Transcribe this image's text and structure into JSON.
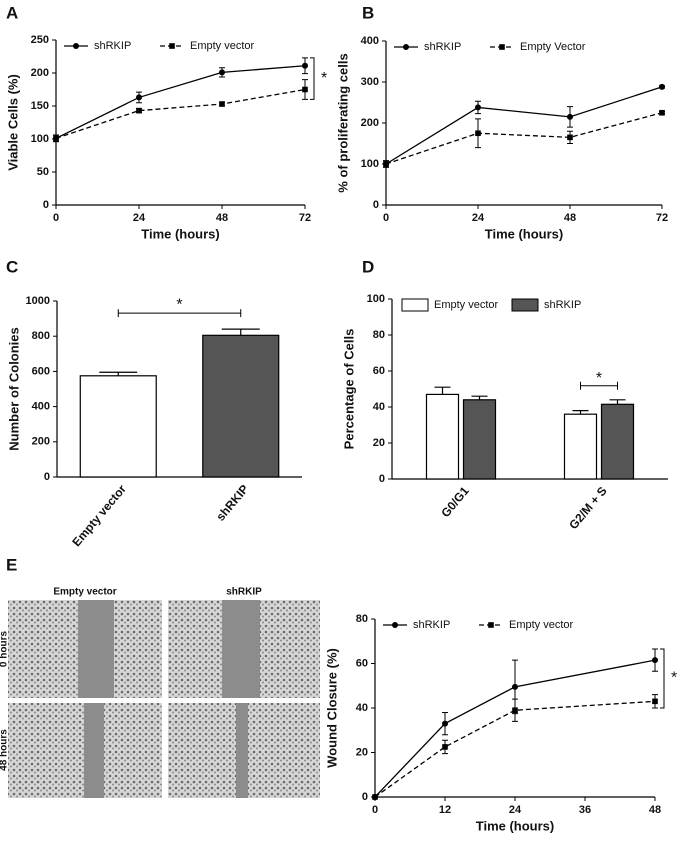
{
  "chart_data": [
    {
      "type": "line",
      "panel_label": "A",
      "x_label": "Time (hours)",
      "y_label": "Viable Cells (%)",
      "x": [
        0,
        24,
        48,
        72
      ],
      "xlim": [
        0,
        72
      ],
      "xticks": [
        0,
        24,
        48,
        72
      ],
      "ylim": [
        0,
        250
      ],
      "yticks": [
        0,
        50,
        100,
        150,
        200,
        250
      ],
      "series": [
        {
          "name": "shRKIP",
          "color": "#000000",
          "line_style": "solid",
          "marker": "circle",
          "values": [
            101,
            163,
            201,
            211
          ],
          "errors": [
            5,
            8,
            7,
            12
          ]
        },
        {
          "name": "Empty vector",
          "color": "#000000",
          "line_style": "dashed",
          "marker": "square",
          "values": [
            101,
            143,
            153,
            175
          ],
          "errors": [
            5,
            3,
            3,
            15
          ]
        }
      ],
      "annotations": [
        {
          "text": "*"
        }
      ]
    },
    {
      "type": "line",
      "panel_label": "B",
      "x_label": "Time (hours)",
      "y_label": "% of proliferating cells",
      "x": [
        0,
        24,
        48,
        72
      ],
      "xlim": [
        0,
        72
      ],
      "xticks": [
        0,
        24,
        48,
        72
      ],
      "ylim": [
        0,
        400
      ],
      "yticks": [
        0,
        100,
        200,
        300,
        400
      ],
      "series": [
        {
          "name": "shRKIP",
          "color": "#000000",
          "line_style": "solid",
          "marker": "circle",
          "values": [
            100,
            238,
            215,
            288
          ],
          "errors": [
            8,
            15,
            25,
            3
          ]
        },
        {
          "name": "Empty Vector",
          "color": "#000000",
          "line_style": "dashed",
          "marker": "square",
          "values": [
            100,
            175,
            165,
            225
          ],
          "errors": [
            8,
            35,
            15,
            3
          ]
        }
      ],
      "annotations": []
    },
    {
      "type": "bar",
      "panel_label": "C",
      "y_label": "Number of Colonies",
      "categories": [
        "Empty vector",
        "shRKIP"
      ],
      "values": [
        575,
        805
      ],
      "errors": [
        20,
        35
      ],
      "colors": [
        "#ffffff",
        "#555555"
      ],
      "ylim": [
        0,
        1000
      ],
      "yticks": [
        0,
        200,
        400,
        600,
        800,
        1000
      ],
      "annotations": [
        {
          "text": "*"
        }
      ]
    },
    {
      "type": "grouped_bar",
      "panel_label": "D",
      "y_label": "Percentage of Cells",
      "categories": [
        "G0/G1",
        "G2/M + S"
      ],
      "ylim": [
        0,
        100
      ],
      "yticks": [
        0,
        20,
        40,
        60,
        80,
        100
      ],
      "series": [
        {
          "name": "Empty vector",
          "color": "#ffffff",
          "values": [
            47,
            36
          ],
          "errors": [
            4,
            2
          ]
        },
        {
          "name": "shRKIP",
          "color": "#555555",
          "values": [
            44,
            41.5
          ],
          "errors": [
            2,
            2.5
          ]
        }
      ],
      "annotations": [
        {
          "text": "*"
        }
      ]
    },
    {
      "type": "line",
      "panel_label": "E",
      "x_label": "Time (hours)",
      "y_label": "Wound Closure (%)",
      "x": [
        0,
        12,
        24,
        48
      ],
      "xlim": [
        0,
        48
      ],
      "xticks": [
        0,
        12,
        24,
        36,
        48
      ],
      "ylim": [
        0,
        80
      ],
      "yticks": [
        0,
        20,
        40,
        60,
        80
      ],
      "series": [
        {
          "name": "shRKIP",
          "color": "#000000",
          "line_style": "solid",
          "marker": "circle",
          "values": [
            0,
            33,
            49.5,
            61.5
          ],
          "errors": [
            0,
            5,
            12,
            5
          ]
        },
        {
          "name": "Empty vector",
          "color": "#000000",
          "line_style": "dashed",
          "marker": "square",
          "values": [
            0,
            22.5,
            39,
            43
          ],
          "errors": [
            0,
            3,
            5,
            3
          ]
        }
      ],
      "annotations": [
        {
          "text": "*"
        }
      ]
    }
  ],
  "micrographs": {
    "columns": [
      "Empty vector",
      "shRKIP"
    ],
    "rows": [
      "0 hours",
      "48 hours"
    ]
  }
}
